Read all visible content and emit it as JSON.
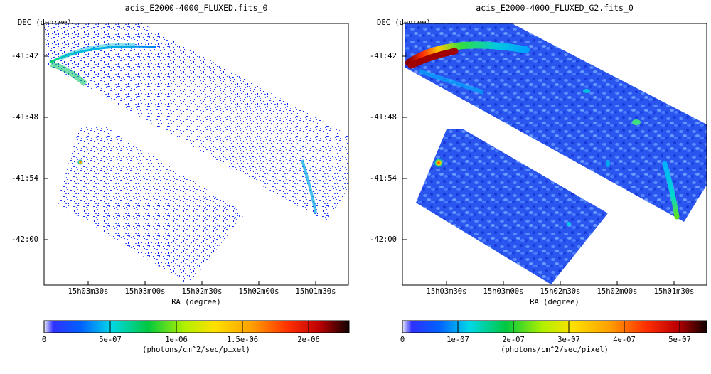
{
  "panels": [
    {
      "title": "acis_E2000-4000_FLUXED.fits_0",
      "ylabel": "DEC (degree)",
      "xlabel": "RA (degree)",
      "yticks": [
        "-41:42",
        "-41:48",
        "-41:54",
        "-42:00"
      ],
      "xticks": [
        "15h03m30s",
        "15h03m00s",
        "15h02m30s",
        "15h02m00s",
        "15h01m30s"
      ],
      "colorbar": {
        "ticks": [
          "0",
          "5e-07",
          "1e-06",
          "1.5e-06",
          "2e-06"
        ],
        "label": "(photons/cm^2/sec/pixel)"
      }
    },
    {
      "title": "acis_E2000-4000_FLUXED_G2.fits_0",
      "ylabel": "DEC (degree)",
      "xlabel": "RA (degree)",
      "yticks": [
        "-41:42",
        "-41:48",
        "-41:54",
        "-42:00"
      ],
      "xticks": [
        "15h03m30s",
        "15h03m00s",
        "15h02m30s",
        "15h02m00s",
        "15h01m30s"
      ],
      "colorbar": {
        "ticks": [
          "0",
          "1e-07",
          "2e-07",
          "3e-07",
          "4e-07",
          "5e-07"
        ],
        "label": "(photons/cm^2/sec/pixel)"
      }
    }
  ],
  "chart_data": [
    {
      "type": "heatmap",
      "title": "acis_E2000-4000_FLUXED.fits_0",
      "xlabel": "RA (degree)",
      "ylabel": "DEC (degree)",
      "x_ticks": [
        "15h03m30s",
        "15h03m00s",
        "15h02m30s",
        "15h02m00s",
        "15h01m30s"
      ],
      "y_ticks": [
        "-41:42",
        "-41:48",
        "-41:54",
        "-42:00"
      ],
      "colorbar_range": [
        0,
        2.3e-06
      ],
      "colorbar_ticks": [
        0,
        5e-07,
        1e-06,
        1.5e-06,
        2e-06
      ],
      "colorbar_label": "(photons/cm^2/sec/pixel)",
      "colormap": "blue-cyan-green-yellow-orange-red-black"
    },
    {
      "type": "heatmap",
      "title": "acis_E2000-4000_FLUXED_G2.fits_0",
      "xlabel": "RA (degree)",
      "ylabel": "DEC (degree)",
      "x_ticks": [
        "15h03m30s",
        "15h03m00s",
        "15h02m30s",
        "15h02m00s",
        "15h01m30s"
      ],
      "y_ticks": [
        "-41:42",
        "-41:48",
        "-41:54",
        "-42:00"
      ],
      "colorbar_range": [
        0,
        5.5e-07
      ],
      "colorbar_ticks": [
        0,
        1e-07,
        2e-07,
        3e-07,
        4e-07,
        5e-07
      ],
      "colorbar_label": "(photons/cm^2/sec/pixel)",
      "colormap": "blue-cyan-green-yellow-orange-red-black"
    }
  ]
}
